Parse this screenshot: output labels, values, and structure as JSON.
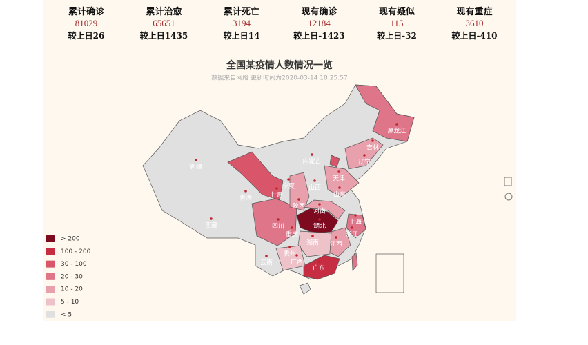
{
  "stats": [
    {
      "label": "累计确诊",
      "value": "81029",
      "change": "较上日26"
    },
    {
      "label": "累计治愈",
      "value": "65651",
      "change": "较上日1435"
    },
    {
      "label": "累计死亡",
      "value": "3194",
      "change": "较上日14"
    },
    {
      "label": "现有确诊",
      "value": "12184",
      "change": "较上日-1423"
    },
    {
      "label": "现有疑似",
      "value": "115",
      "change": "较上日-32"
    },
    {
      "label": "现有重症",
      "value": "3610",
      "change": "较上日-410"
    }
  ],
  "map": {
    "title": "全国某疫情人数情况一览",
    "subtitle": "数据来自网络 更新时间为2020-03-14 18:25:57",
    "legend": [
      {
        "label": "> 200",
        "color": "#7d0a1f"
      },
      {
        "label": "100 - 200",
        "color": "#c62d42"
      },
      {
        "label": "30 - 100",
        "color": "#d9566a"
      },
      {
        "label": "20 - 30",
        "color": "#df7589"
      },
      {
        "label": "10 - 20",
        "color": "#e8a0ad"
      },
      {
        "label": "5 - 10",
        "color": "#eec2c9"
      },
      {
        "label": "< 5",
        "color": "#e0e0e0"
      }
    ],
    "regions": [
      "新疆",
      "西藏",
      "青海",
      "甘肃",
      "四川",
      "云南",
      "内蒙古",
      "黑龙江",
      "吉林",
      "辽宁",
      "宁夏",
      "陕西",
      "山西",
      "天津",
      "山东",
      "河南",
      "湖北",
      "湖南",
      "重庆",
      "贵州",
      "广西",
      "广东",
      "江西",
      "浙江",
      "上海"
    ]
  }
}
